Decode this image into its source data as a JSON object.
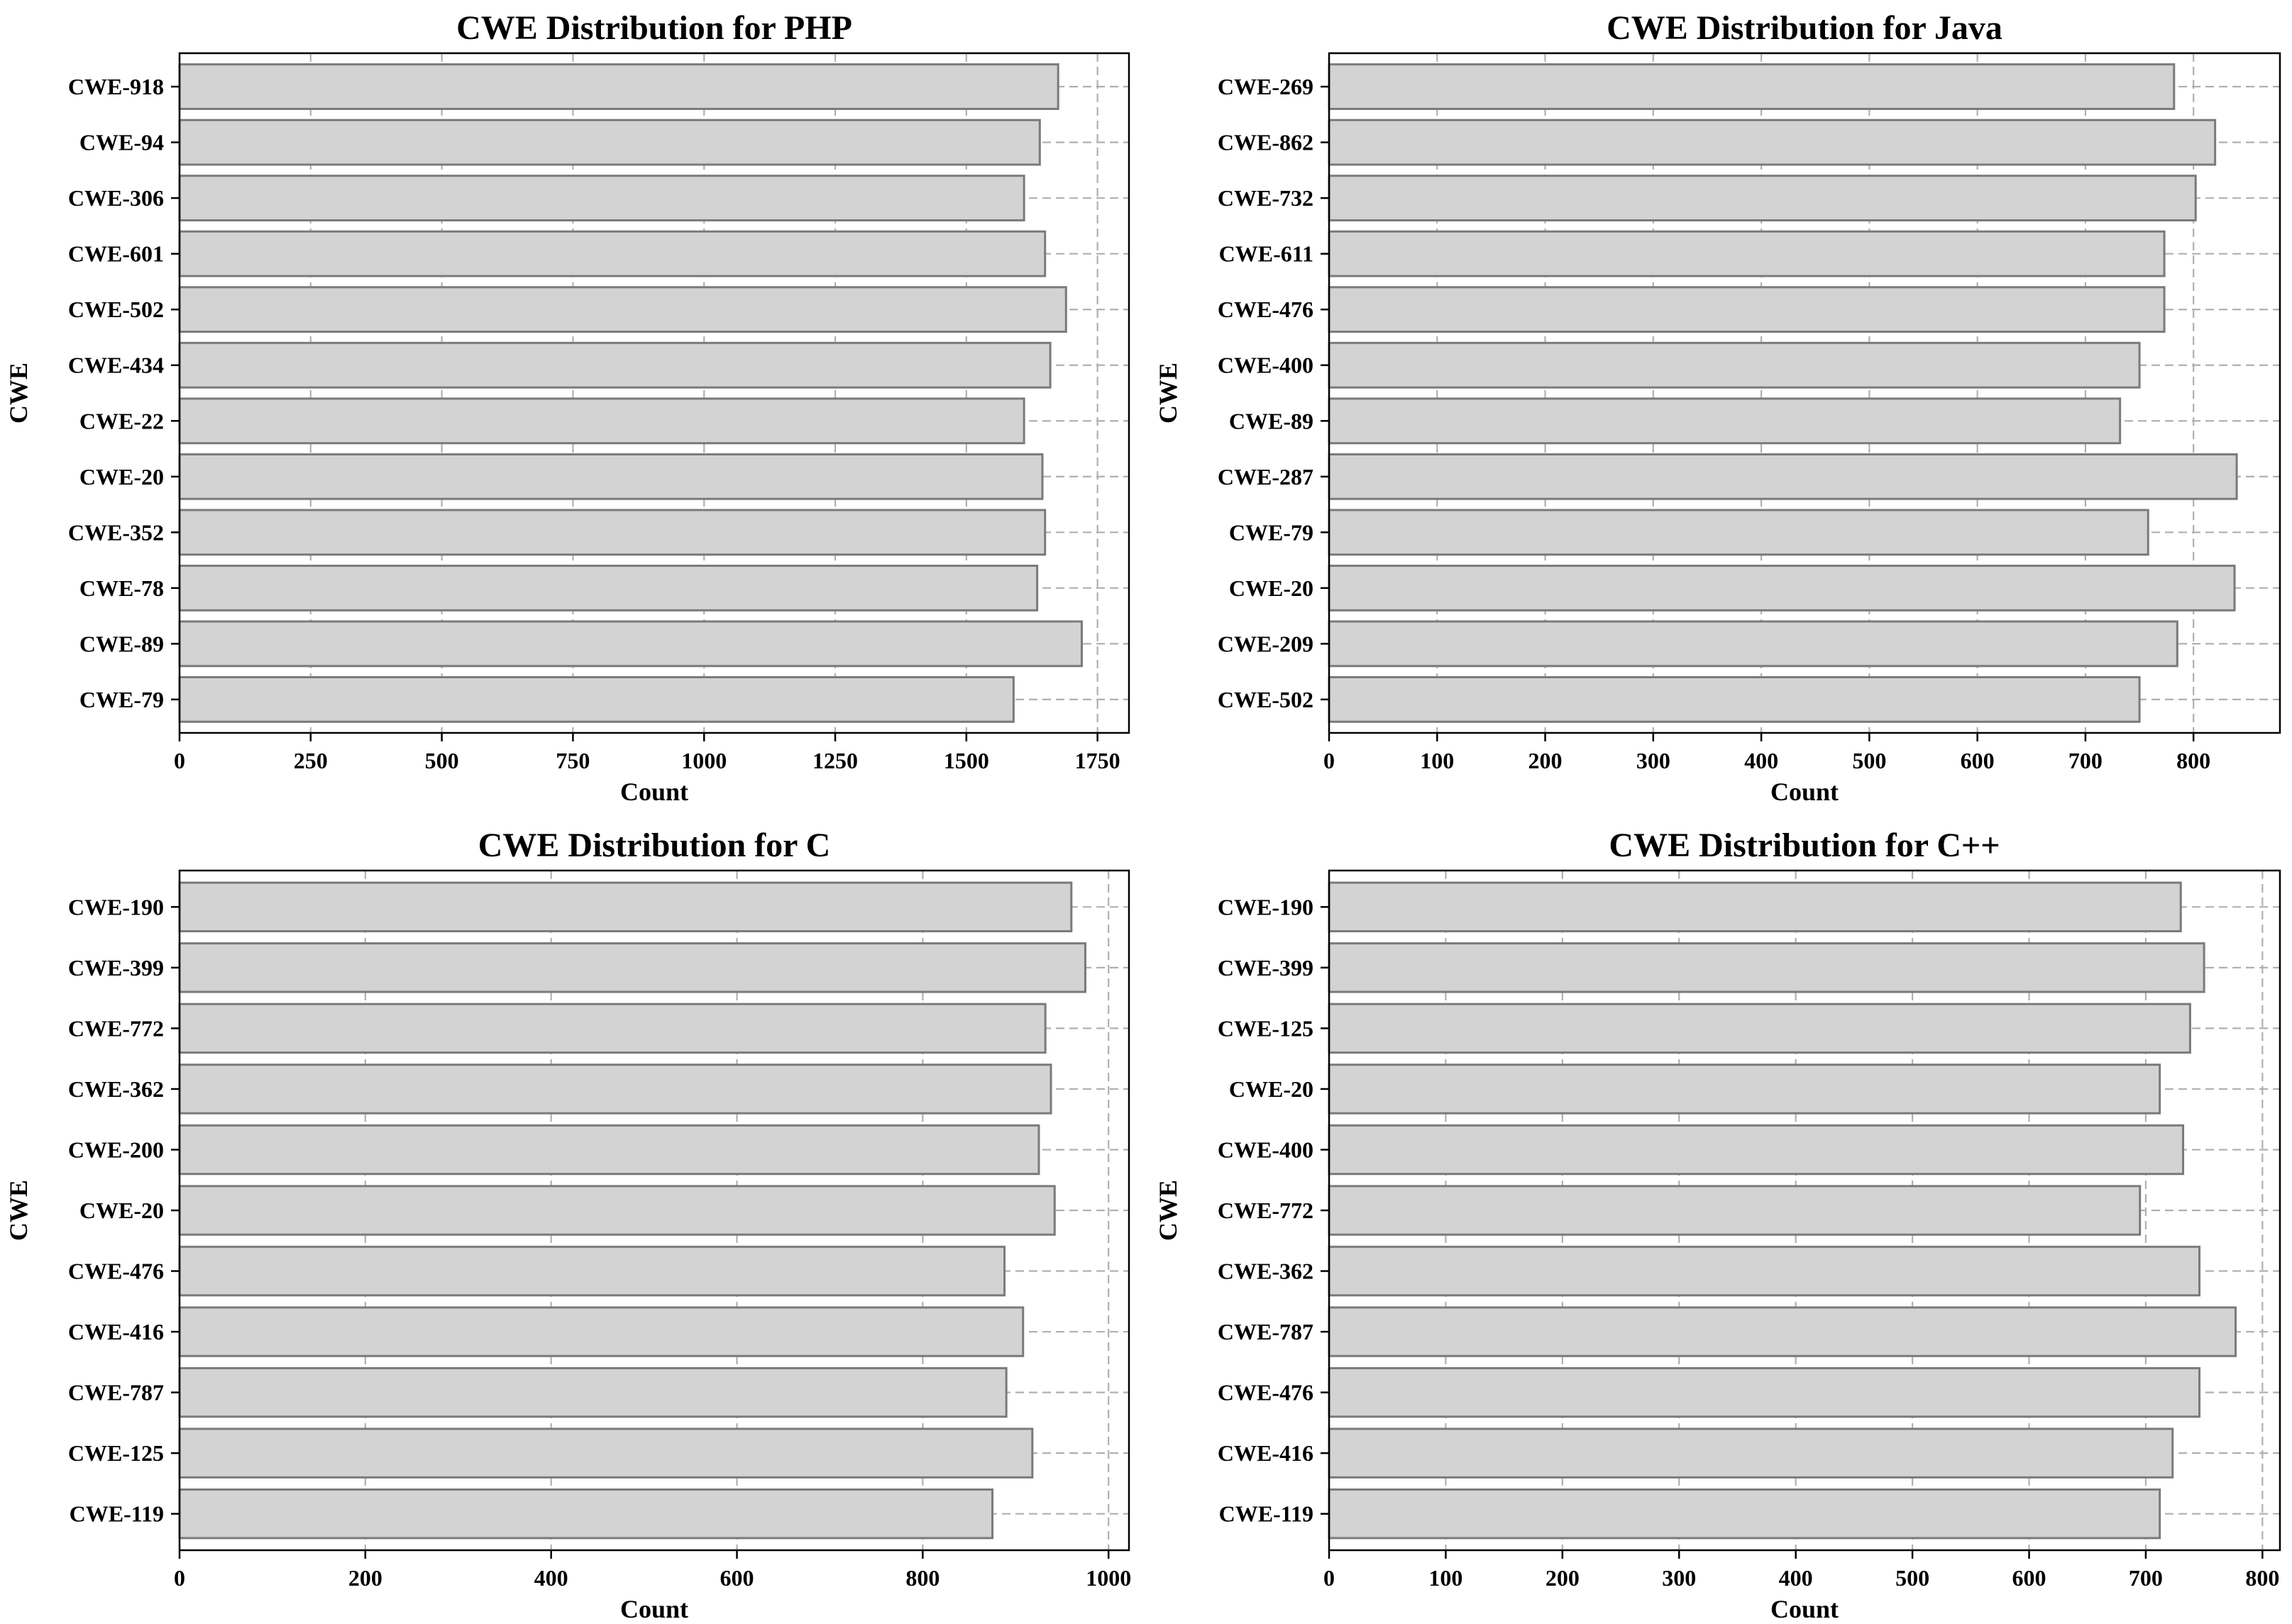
{
  "chart_data": [
    {
      "type": "bar",
      "orientation": "horizontal",
      "title": "CWE Distribution for PHP",
      "xlabel": "Count",
      "ylabel": "CWE",
      "xlim": [
        0,
        1810
      ],
      "xticks": [
        0,
        250,
        500,
        750,
        1000,
        1250,
        1500,
        1750
      ],
      "grid": true,
      "categories": [
        "CWE-918",
        "CWE-94",
        "CWE-306",
        "CWE-601",
        "CWE-502",
        "CWE-434",
        "CWE-22",
        "CWE-20",
        "CWE-352",
        "CWE-78",
        "CWE-89",
        "CWE-79"
      ],
      "values": [
        1675,
        1640,
        1610,
        1650,
        1690,
        1660,
        1610,
        1645,
        1650,
        1635,
        1720,
        1590
      ]
    },
    {
      "type": "bar",
      "orientation": "horizontal",
      "title": "CWE Distribution for Java",
      "xlabel": "Count",
      "ylabel": "CWE",
      "xlim": [
        0,
        880
      ],
      "xticks": [
        0,
        100,
        200,
        300,
        400,
        500,
        600,
        700,
        800
      ],
      "grid": true,
      "categories": [
        "CWE-269",
        "CWE-862",
        "CWE-732",
        "CWE-611",
        "CWE-476",
        "CWE-400",
        "CWE-89",
        "CWE-287",
        "CWE-79",
        "CWE-20",
        "CWE-209",
        "CWE-502"
      ],
      "values": [
        782,
        820,
        802,
        773,
        773,
        750,
        732,
        840,
        758,
        838,
        785,
        750
      ]
    },
    {
      "type": "bar",
      "orientation": "horizontal",
      "title": "CWE Distribution for C",
      "xlabel": "Count",
      "ylabel": "CWE",
      "xlim": [
        0,
        1022
      ],
      "xticks": [
        0,
        200,
        400,
        600,
        800,
        1000
      ],
      "grid": true,
      "categories": [
        "CWE-190",
        "CWE-399",
        "CWE-772",
        "CWE-362",
        "CWE-200",
        "CWE-20",
        "CWE-476",
        "CWE-416",
        "CWE-787",
        "CWE-125",
        "CWE-119"
      ],
      "values": [
        960,
        975,
        932,
        938,
        925,
        942,
        888,
        908,
        890,
        918,
        875
      ]
    },
    {
      "type": "bar",
      "orientation": "horizontal",
      "title": "CWE Distribution for C++",
      "xlabel": "Count",
      "ylabel": "CWE",
      "xlim": [
        0,
        815
      ],
      "xticks": [
        0,
        100,
        200,
        300,
        400,
        500,
        600,
        700,
        800
      ],
      "grid": true,
      "categories": [
        "CWE-190",
        "CWE-399",
        "CWE-125",
        "CWE-20",
        "CWE-400",
        "CWE-772",
        "CWE-362",
        "CWE-787",
        "CWE-476",
        "CWE-416",
        "CWE-119"
      ],
      "values": [
        730,
        750,
        738,
        712,
        732,
        695,
        746,
        777,
        746,
        723,
        712
      ]
    }
  ]
}
